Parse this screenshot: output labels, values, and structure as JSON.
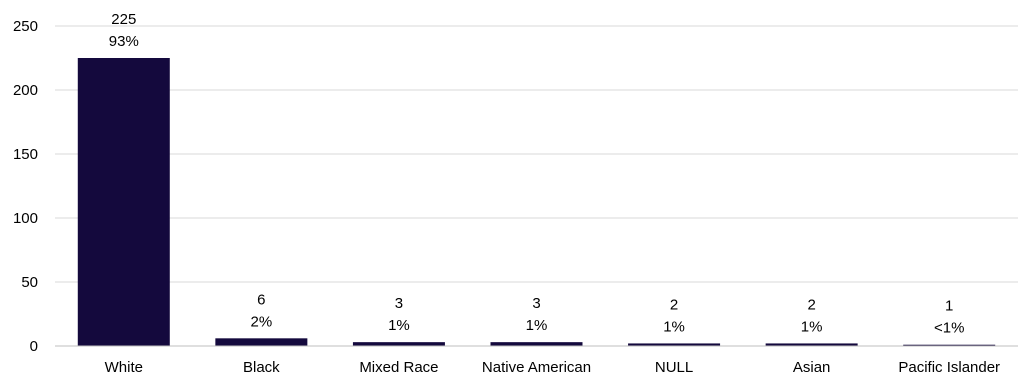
{
  "chart_data": {
    "type": "bar",
    "categories": [
      "White",
      "Black",
      "Mixed Race",
      "Native American",
      "NULL",
      "Asian",
      "Pacific Islander"
    ],
    "values": [
      225,
      6,
      3,
      3,
      2,
      2,
      1
    ],
    "percent_labels": [
      "93%",
      "2%",
      "1%",
      "1%",
      "1%",
      "1%",
      "<1%"
    ],
    "ylim": [
      0,
      250
    ],
    "y_ticks": [
      0,
      50,
      100,
      150,
      200,
      250
    ],
    "grid": true,
    "legend": "none",
    "colors": {
      "bar": "#14093d",
      "grid": "#d9d9d9",
      "axis": "#bfbfbf"
    }
  }
}
